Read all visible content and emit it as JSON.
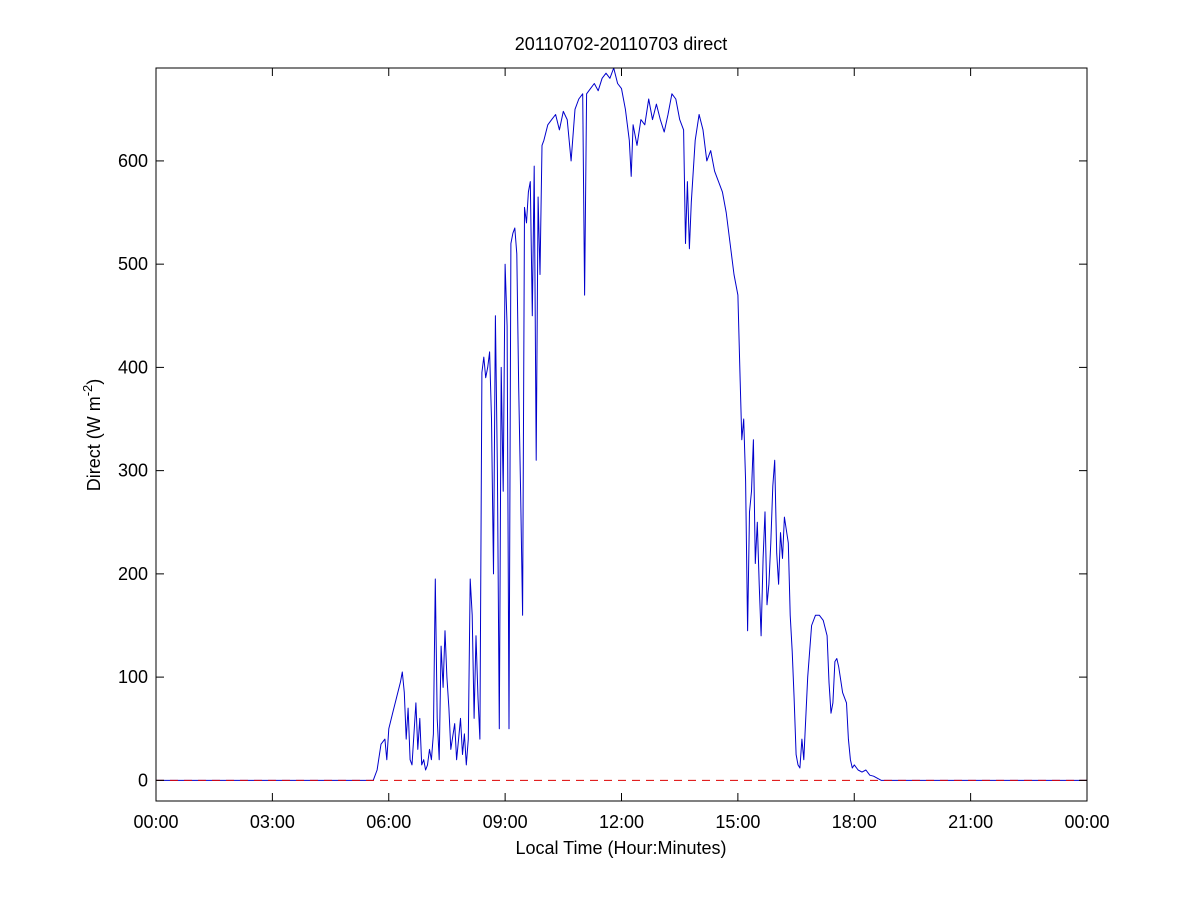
{
  "chart_data": {
    "type": "line",
    "title": "20110702-20110703 direct",
    "xlabel": "Local Time (Hour:Minutes)",
    "ylabel_main": "Direct (W m",
    "ylabel_sup": "-2",
    "ylabel_close": ")",
    "xlim_hours": [
      0,
      24
    ],
    "ylim": [
      -20,
      690
    ],
    "grid": false,
    "x_ticks": [
      {
        "hour": 0,
        "label": "00:00"
      },
      {
        "hour": 3,
        "label": "03:00"
      },
      {
        "hour": 6,
        "label": "06:00"
      },
      {
        "hour": 9,
        "label": "09:00"
      },
      {
        "hour": 12,
        "label": "12:00"
      },
      {
        "hour": 15,
        "label": "15:00"
      },
      {
        "hour": 18,
        "label": "18:00"
      },
      {
        "hour": 21,
        "label": "21:00"
      },
      {
        "hour": 24,
        "label": "00:00"
      }
    ],
    "y_ticks": [
      0,
      100,
      200,
      300,
      400,
      500,
      600
    ],
    "series": [
      {
        "color": "#0000cc",
        "style": "solid",
        "points": [
          [
            0.0,
            0
          ],
          [
            0.4,
            0
          ],
          [
            5.6,
            0
          ],
          [
            5.7,
            10
          ],
          [
            5.8,
            35
          ],
          [
            5.9,
            40
          ],
          [
            5.95,
            20
          ],
          [
            6.0,
            50
          ],
          [
            6.1,
            65
          ],
          [
            6.2,
            80
          ],
          [
            6.3,
            95
          ],
          [
            6.35,
            105
          ],
          [
            6.4,
            85
          ],
          [
            6.45,
            40
          ],
          [
            6.5,
            70
          ],
          [
            6.55,
            20
          ],
          [
            6.6,
            15
          ],
          [
            6.7,
            75
          ],
          [
            6.75,
            30
          ],
          [
            6.8,
            60
          ],
          [
            6.85,
            15
          ],
          [
            6.9,
            20
          ],
          [
            6.95,
            10
          ],
          [
            7.0,
            15
          ],
          [
            7.05,
            30
          ],
          [
            7.1,
            20
          ],
          [
            7.15,
            45
          ],
          [
            7.2,
            195
          ],
          [
            7.25,
            60
          ],
          [
            7.3,
            20
          ],
          [
            7.35,
            130
          ],
          [
            7.4,
            90
          ],
          [
            7.45,
            145
          ],
          [
            7.5,
            100
          ],
          [
            7.55,
            70
          ],
          [
            7.6,
            30
          ],
          [
            7.7,
            55
          ],
          [
            7.75,
            20
          ],
          [
            7.8,
            40
          ],
          [
            7.85,
            60
          ],
          [
            7.9,
            25
          ],
          [
            7.95,
            45
          ],
          [
            8.0,
            15
          ],
          [
            8.05,
            40
          ],
          [
            8.1,
            195
          ],
          [
            8.15,
            160
          ],
          [
            8.2,
            60
          ],
          [
            8.25,
            140
          ],
          [
            8.3,
            80
          ],
          [
            8.35,
            40
          ],
          [
            8.4,
            395
          ],
          [
            8.45,
            410
          ],
          [
            8.5,
            390
          ],
          [
            8.55,
            400
          ],
          [
            8.6,
            415
          ],
          [
            8.65,
            350
          ],
          [
            8.7,
            200
          ],
          [
            8.75,
            450
          ],
          [
            8.8,
            300
          ],
          [
            8.85,
            50
          ],
          [
            8.9,
            400
          ],
          [
            8.95,
            280
          ],
          [
            9.0,
            500
          ],
          [
            9.05,
            440
          ],
          [
            9.1,
            50
          ],
          [
            9.15,
            520
          ],
          [
            9.2,
            530
          ],
          [
            9.25,
            535
          ],
          [
            9.3,
            510
          ],
          [
            9.35,
            380
          ],
          [
            9.4,
            280
          ],
          [
            9.45,
            160
          ],
          [
            9.5,
            555
          ],
          [
            9.55,
            540
          ],
          [
            9.6,
            570
          ],
          [
            9.65,
            580
          ],
          [
            9.7,
            450
          ],
          [
            9.75,
            595
          ],
          [
            9.8,
            310
          ],
          [
            9.85,
            565
          ],
          [
            9.9,
            490
          ],
          [
            9.95,
            615
          ],
          [
            10.0,
            620
          ],
          [
            10.1,
            635
          ],
          [
            10.2,
            640
          ],
          [
            10.3,
            645
          ],
          [
            10.4,
            630
          ],
          [
            10.5,
            648
          ],
          [
            10.6,
            640
          ],
          [
            10.7,
            600
          ],
          [
            10.8,
            650
          ],
          [
            10.9,
            660
          ],
          [
            11.0,
            665
          ],
          [
            11.05,
            470
          ],
          [
            11.1,
            665
          ],
          [
            11.2,
            670
          ],
          [
            11.3,
            675
          ],
          [
            11.4,
            668
          ],
          [
            11.5,
            680
          ],
          [
            11.6,
            685
          ],
          [
            11.7,
            680
          ],
          [
            11.8,
            690
          ],
          [
            11.9,
            675
          ],
          [
            12.0,
            670
          ],
          [
            12.1,
            650
          ],
          [
            12.2,
            620
          ],
          [
            12.25,
            585
          ],
          [
            12.3,
            635
          ],
          [
            12.4,
            615
          ],
          [
            12.5,
            640
          ],
          [
            12.6,
            635
          ],
          [
            12.7,
            660
          ],
          [
            12.8,
            640
          ],
          [
            12.9,
            655
          ],
          [
            13.0,
            640
          ],
          [
            13.1,
            628
          ],
          [
            13.2,
            645
          ],
          [
            13.3,
            665
          ],
          [
            13.4,
            660
          ],
          [
            13.5,
            640
          ],
          [
            13.6,
            630
          ],
          [
            13.65,
            520
          ],
          [
            13.7,
            580
          ],
          [
            13.75,
            515
          ],
          [
            13.8,
            560
          ],
          [
            13.9,
            620
          ],
          [
            14.0,
            645
          ],
          [
            14.1,
            630
          ],
          [
            14.2,
            600
          ],
          [
            14.3,
            610
          ],
          [
            14.4,
            590
          ],
          [
            14.5,
            580
          ],
          [
            14.6,
            570
          ],
          [
            14.7,
            550
          ],
          [
            14.8,
            520
          ],
          [
            14.9,
            490
          ],
          [
            15.0,
            470
          ],
          [
            15.05,
            400
          ],
          [
            15.1,
            330
          ],
          [
            15.15,
            350
          ],
          [
            15.2,
            290
          ],
          [
            15.25,
            145
          ],
          [
            15.3,
            260
          ],
          [
            15.35,
            280
          ],
          [
            15.4,
            330
          ],
          [
            15.45,
            210
          ],
          [
            15.5,
            250
          ],
          [
            15.55,
            190
          ],
          [
            15.6,
            140
          ],
          [
            15.65,
            215
          ],
          [
            15.7,
            260
          ],
          [
            15.75,
            170
          ],
          [
            15.8,
            190
          ],
          [
            15.85,
            230
          ],
          [
            15.9,
            285
          ],
          [
            15.95,
            310
          ],
          [
            16.0,
            220
          ],
          [
            16.05,
            190
          ],
          [
            16.1,
            240
          ],
          [
            16.15,
            215
          ],
          [
            16.2,
            255
          ],
          [
            16.3,
            230
          ],
          [
            16.35,
            160
          ],
          [
            16.4,
            125
          ],
          [
            16.45,
            80
          ],
          [
            16.5,
            25
          ],
          [
            16.55,
            15
          ],
          [
            16.6,
            12
          ],
          [
            16.65,
            40
          ],
          [
            16.7,
            20
          ],
          [
            16.8,
            100
          ],
          [
            16.9,
            150
          ],
          [
            17.0,
            160
          ],
          [
            17.1,
            160
          ],
          [
            17.2,
            155
          ],
          [
            17.3,
            140
          ],
          [
            17.35,
            95
          ],
          [
            17.4,
            65
          ],
          [
            17.45,
            75
          ],
          [
            17.5,
            115
          ],
          [
            17.55,
            118
          ],
          [
            17.6,
            110
          ],
          [
            17.7,
            85
          ],
          [
            17.8,
            75
          ],
          [
            17.85,
            40
          ],
          [
            17.9,
            20
          ],
          [
            17.95,
            12
          ],
          [
            18.0,
            15
          ],
          [
            18.1,
            10
          ],
          [
            18.2,
            8
          ],
          [
            18.3,
            10
          ],
          [
            18.4,
            5
          ],
          [
            18.5,
            4
          ],
          [
            18.6,
            2
          ],
          [
            18.7,
            0
          ],
          [
            24.0,
            0
          ]
        ]
      },
      {
        "color": "#dd0000",
        "style": "dashed",
        "points": [
          [
            0.0,
            0
          ],
          [
            24.0,
            0
          ]
        ]
      }
    ]
  }
}
